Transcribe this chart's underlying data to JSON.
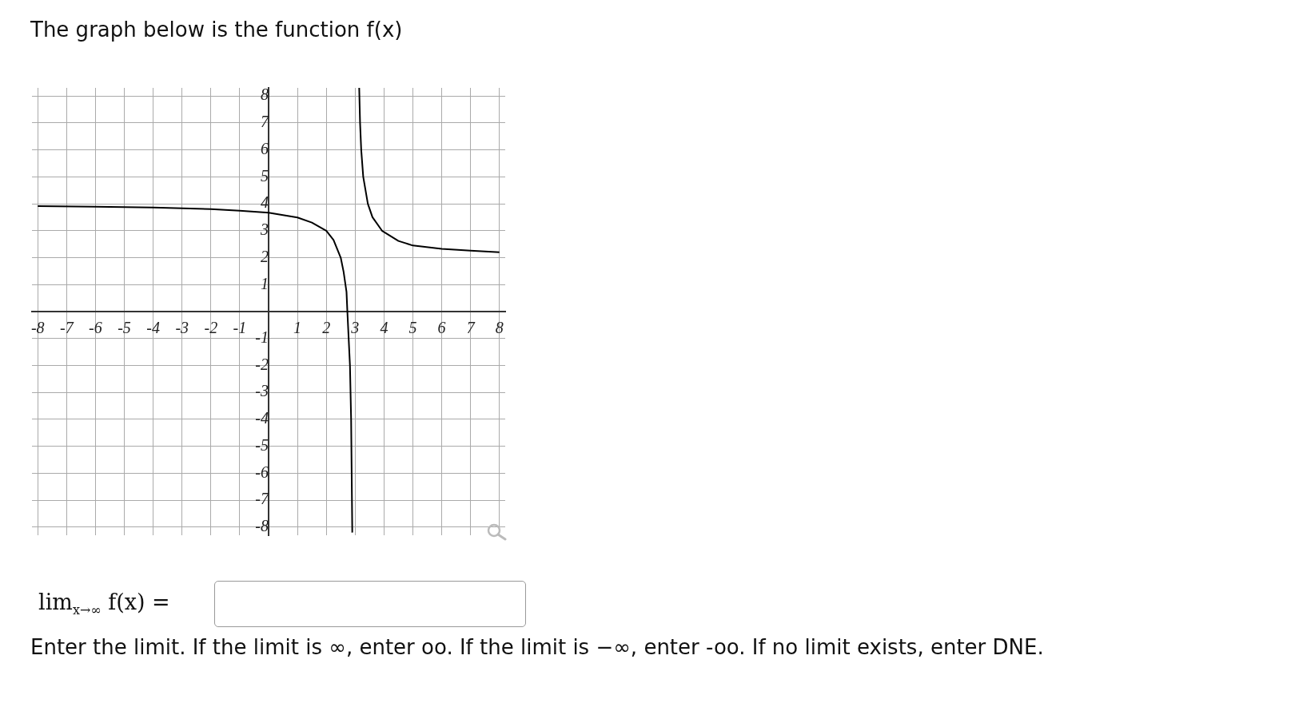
{
  "chart_data": {
    "type": "line",
    "title": "The graph below is the function f(x)",
    "xlim": [
      -8.2,
      8.2
    ],
    "ylim": [
      -8.3,
      8.3
    ],
    "xticks": [
      -8,
      -7,
      -6,
      -5,
      -4,
      -3,
      -2,
      -1,
      1,
      2,
      3,
      4,
      5,
      6,
      7,
      8
    ],
    "yticks": [
      -8,
      -7,
      -6,
      -5,
      -4,
      -3,
      -2,
      -1,
      1,
      2,
      3,
      4,
      5,
      6,
      7,
      8
    ],
    "grid": true,
    "marker": "none",
    "line_style": "solid",
    "series": [
      {
        "color": "#000000",
        "x": [
          -8,
          -6,
          -4,
          -2,
          -1,
          0,
          1,
          1.5,
          2,
          2.25,
          2.5,
          2.6,
          2.7,
          2.73,
          2.82,
          2.86,
          2.9
        ],
        "values": [
          3.91,
          3.89,
          3.86,
          3.8,
          3.74,
          3.67,
          3.49,
          3.3,
          3.0,
          2.66,
          2.0,
          1.47,
          0.73,
          0,
          -2,
          -4,
          -8.2
        ]
      },
      {
        "color": "#000000",
        "x": [
          3.14,
          3.17,
          3.21,
          3.28,
          3.44,
          3.6,
          3.93,
          4.5,
          5,
          6,
          7,
          8
        ],
        "values": [
          8.3,
          7,
          6,
          5,
          4,
          3.5,
          3,
          2.62,
          2.45,
          2.33,
          2.26,
          2.2
        ]
      }
    ],
    "annotations": [
      "lim$_{x→∞}$ f(x) =",
      "Enter the limit. If the limit is ∞, enter oo. If the limit is −∞, enter -oo. If no limit exists, enter DNE."
    ]
  }
}
